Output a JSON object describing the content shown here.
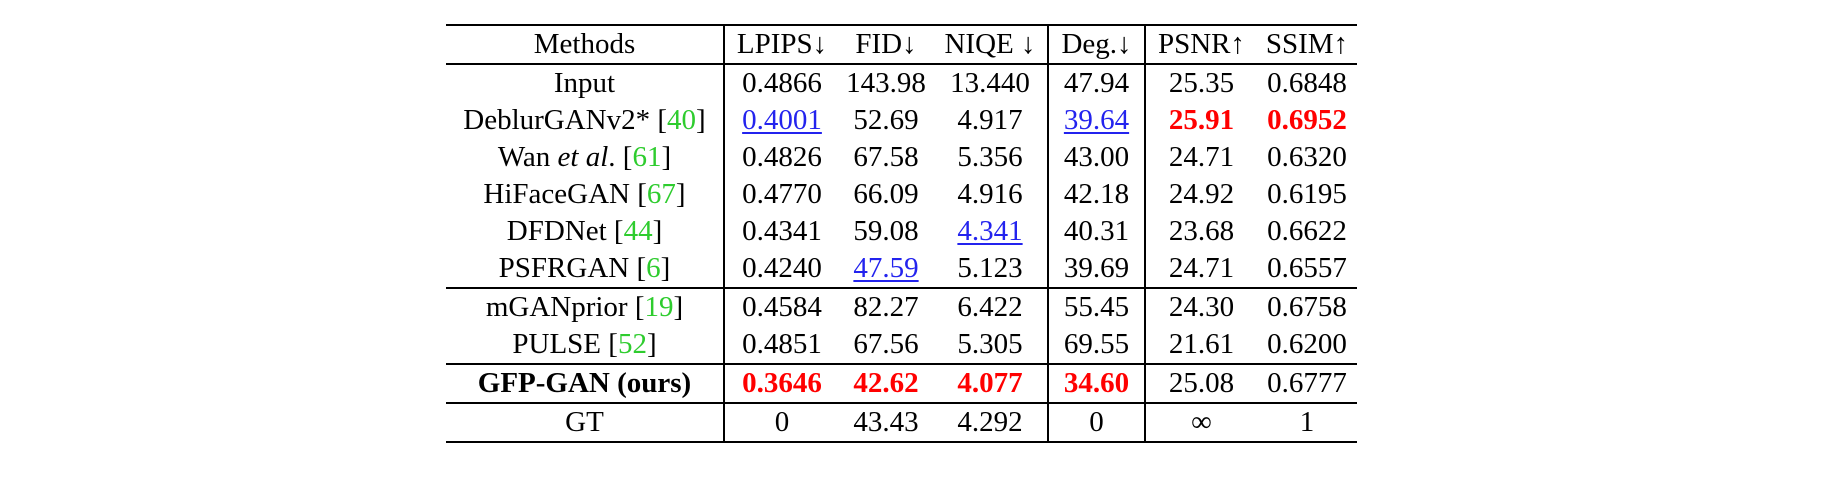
{
  "table": {
    "headers": [
      "Methods",
      "LPIPS↓",
      "FID↓",
      "NIQE ↓",
      "Deg.↓",
      "PSNR↑",
      "SSIM↑"
    ],
    "rows": [
      {
        "method": "Input",
        "cite": "",
        "values": [
          "0.4866",
          "143.98",
          "13.440",
          "47.94",
          "25.35",
          "0.6848"
        ]
      },
      {
        "method": "DeblurGANv2* ",
        "cite": "40",
        "values": [
          "0.4001",
          "52.69",
          "4.917",
          "39.64",
          "25.91",
          "0.6952"
        ]
      },
      {
        "method_pre": "Wan ",
        "method_em": "et al",
        "method_post": ". ",
        "cite": "61",
        "values": [
          "0.4826",
          "67.58",
          "5.356",
          "43.00",
          "24.71",
          "0.6320"
        ]
      },
      {
        "method": "HiFaceGAN ",
        "cite": "67",
        "values": [
          "0.4770",
          "66.09",
          "4.916",
          "42.18",
          "24.92",
          "0.6195"
        ]
      },
      {
        "method": "DFDNet ",
        "cite": "44",
        "values": [
          "0.4341",
          "59.08",
          "4.341",
          "40.31",
          "23.68",
          "0.6622"
        ]
      },
      {
        "method": "PSFRGAN ",
        "cite": "6",
        "values": [
          "0.4240",
          "47.59",
          "5.123",
          "39.69",
          "24.71",
          "0.6557"
        ]
      },
      {
        "method": "mGANprior ",
        "cite": "19",
        "values": [
          "0.4584",
          "82.27",
          "6.422",
          "55.45",
          "24.30",
          "0.6758"
        ]
      },
      {
        "method": "PULSE ",
        "cite": "52",
        "values": [
          "0.4851",
          "67.56",
          "5.305",
          "69.55",
          "21.61",
          "0.6200"
        ]
      },
      {
        "method": "GFP-GAN (ours)",
        "cite": "",
        "values": [
          "0.3646",
          "42.62",
          "4.077",
          "34.60",
          "25.08",
          "0.6777"
        ]
      },
      {
        "method": "GT",
        "cite": "",
        "values": [
          "0",
          "43.43",
          "4.292",
          "0",
          "∞",
          "1"
        ]
      }
    ],
    "best_color": "#ff0000",
    "second_color": "#2323ee",
    "citation_color": "#2ecc2e"
  }
}
